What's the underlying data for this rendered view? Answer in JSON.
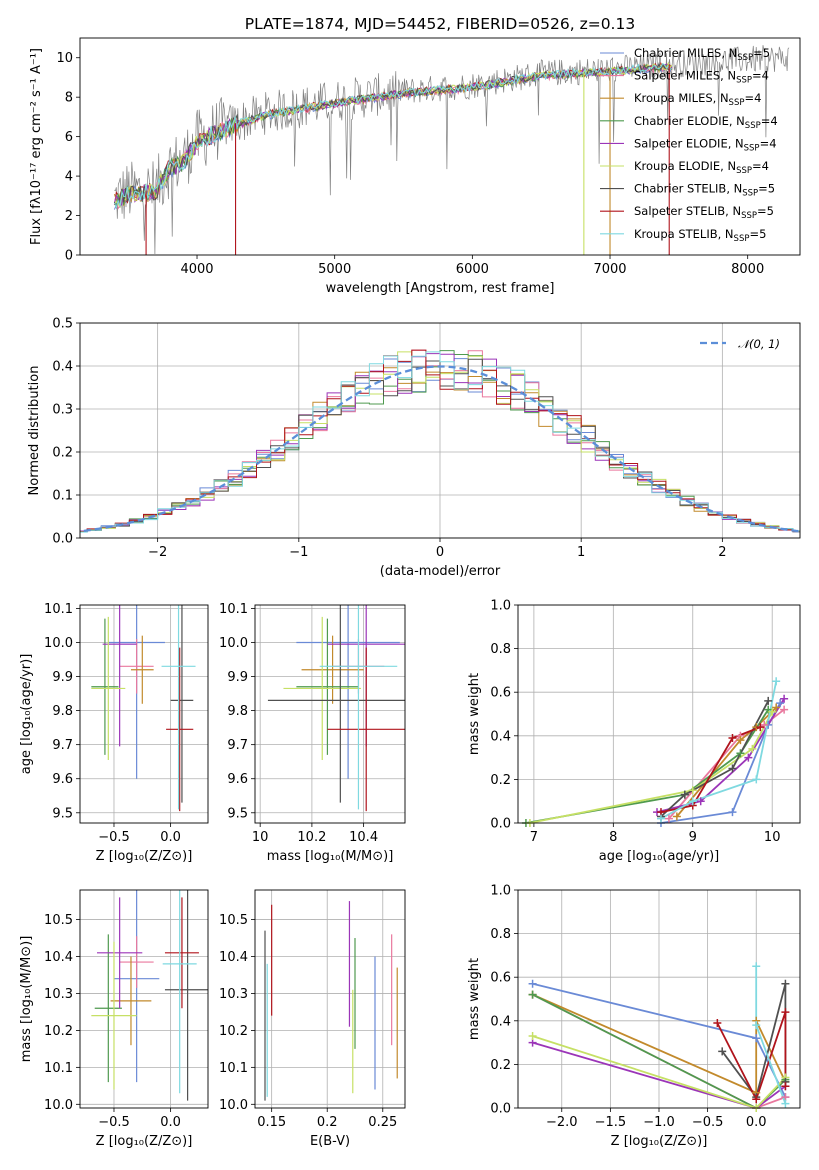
{
  "title": "PLATE=1874, MJD=54452, FIBERID=0526, z=0.13",
  "models": [
    {
      "name": "Chabrier MILES, N",
      "sub": "SSP",
      "suffix": "=5",
      "color": "#6a8ad6"
    },
    {
      "name": "Salpeter MILES, N",
      "sub": "SSP",
      "suffix": "=4",
      "color": "#e9789e"
    },
    {
      "name": "Kroupa MILES, N",
      "sub": "SSP",
      "suffix": "=4",
      "color": "#c28a2c"
    },
    {
      "name": "Chabrier ELODIE, N",
      "sub": "SSP",
      "suffix": "=4",
      "color": "#4f9a4f"
    },
    {
      "name": "Salpeter ELODIE, N",
      "sub": "SSP",
      "suffix": "=4",
      "color": "#9b35b8"
    },
    {
      "name": "Kroupa ELODIE, N",
      "sub": "SSP",
      "suffix": "=4",
      "color": "#c6e065"
    },
    {
      "name": "Chabrier STELIB, N",
      "sub": "SSP",
      "suffix": "=5",
      "color": "#505050"
    },
    {
      "name": "Salpeter STELIB, N",
      "sub": "SSP",
      "suffix": "=5",
      "color": "#b0141c"
    },
    {
      "name": "Kroupa STELIB, N",
      "sub": "SSP",
      "suffix": "=5",
      "color": "#7fd9e0"
    }
  ],
  "chart_data": [
    {
      "type": "line",
      "id": "spectrum",
      "xlabel": "wavelength [Angstrom, rest frame]",
      "ylabel": "Flux [fλ10⁻¹⁷ erg cm⁻² s⁻¹ A⁻¹]",
      "xlim": [
        3150,
        8380
      ],
      "ylim": [
        0,
        11
      ],
      "xticks": [
        4000,
        5000,
        6000,
        7000,
        8000
      ],
      "yticks": [
        0,
        2,
        4,
        6,
        8,
        10
      ],
      "data_color": "#808080",
      "continuum": {
        "x": [
          3400,
          3500,
          3700,
          3800,
          3900,
          4000,
          4200,
          4500,
          5000,
          5500,
          6000,
          6500,
          7000,
          7500,
          8000,
          8300
        ],
        "y": [
          2.8,
          3.2,
          3.3,
          4.5,
          4.8,
          5.8,
          6.5,
          7.2,
          7.8,
          8.3,
          8.6,
          9.2,
          9.4,
          9.7,
          9.9,
          10.0
        ]
      },
      "model_range": [
        3400,
        7450
      ],
      "data_range": [
        3400,
        8300
      ],
      "dropouts": [
        {
          "x": 3630,
          "model": 7
        },
        {
          "x": 4280,
          "model": 7
        },
        {
          "x": 6810,
          "model": 5
        },
        {
          "x": 7430,
          "model": 7
        },
        {
          "x": 7000,
          "model": 2
        }
      ]
    },
    {
      "type": "step",
      "id": "residual-histogram",
      "xlabel": "(data-model)/error",
      "ylabel": "Normed distribution",
      "xlim": [
        -2.55,
        2.55
      ],
      "ylim": [
        0,
        0.5
      ],
      "xticks": [
        -2,
        -1,
        0,
        1,
        2
      ],
      "yticks": [
        0.0,
        0.1,
        0.2,
        0.3,
        0.4,
        0.5
      ],
      "bin_width": 0.1,
      "legend": "𝒩(0, 1)",
      "reference_color": "#5b8ed8"
    },
    {
      "type": "errorbar",
      "id": "age-vs-metallicity",
      "xlabel": "Z [log₁₀(Z/Z⊙)]",
      "ylabel": "age  [log₁₀(age/yr)]",
      "xlim": [
        -0.8,
        0.33
      ],
      "ylim": [
        9.47,
        10.11
      ],
      "xticks": [
        -0.5,
        0.0
      ],
      "yticks": [
        9.5,
        9.6,
        9.7,
        9.8,
        9.9,
        10.0,
        10.1
      ],
      "points": [
        {
          "m": 0,
          "x": -0.3,
          "y": 10.0,
          "xe": 0.25,
          "ye": 0.4
        },
        {
          "m": 1,
          "x": -0.3,
          "y": 9.93,
          "xe": 0.15,
          "ye": 0.08
        },
        {
          "m": 2,
          "x": -0.25,
          "y": 9.92,
          "xe": 0.1,
          "ye": 0.1
        },
        {
          "m": 3,
          "x": -0.58,
          "y": 9.87,
          "xe": 0.12,
          "ye": 0.2
        },
        {
          "m": 4,
          "x": -0.45,
          "y": 9.995,
          "xe": 0.15,
          "ye": 0.3
        },
        {
          "m": 5,
          "x": -0.55,
          "y": 9.865,
          "xe": 0.15,
          "ye": 0.21
        },
        {
          "m": 6,
          "x": 0.1,
          "y": 9.83,
          "xe": 0.1,
          "ye": 0.3
        },
        {
          "m": 7,
          "x": 0.08,
          "y": 9.745,
          "xe": 0.12,
          "ye": 0.24
        },
        {
          "m": 8,
          "x": 0.07,
          "y": 9.93,
          "xe": 0.15,
          "ye": 0.42
        }
      ]
    },
    {
      "type": "errorbar",
      "id": "age-vs-mass",
      "xlabel": "mass [log₁₀(M/M⊙)]",
      "ylabel": "",
      "xlim": [
        9.98,
        10.56
      ],
      "ylim": [
        9.47,
        10.11
      ],
      "xticks": [
        10.0,
        10.2,
        10.4
      ],
      "yticks": [
        9.5,
        9.6,
        9.7,
        9.8,
        9.9,
        10.0,
        10.1
      ],
      "points": [
        {
          "m": 0,
          "x": 10.34,
          "y": 10.0,
          "xe": 0.2,
          "ye": 0.4
        },
        {
          "m": 1,
          "x": 10.38,
          "y": 9.93,
          "xe": 0.1,
          "ye": 0.08
        },
        {
          "m": 2,
          "x": 10.28,
          "y": 9.92,
          "xe": 0.12,
          "ye": 0.1
        },
        {
          "m": 3,
          "x": 10.26,
          "y": 9.87,
          "xe": 0.12,
          "ye": 0.2
        },
        {
          "m": 4,
          "x": 10.41,
          "y": 9.995,
          "xe": 0.15,
          "ye": 0.3
        },
        {
          "m": 5,
          "x": 10.24,
          "y": 9.865,
          "xe": 0.15,
          "ye": 0.21
        },
        {
          "m": 6,
          "x": 10.31,
          "y": 9.83,
          "xe": 0.28,
          "ye": 0.3
        },
        {
          "m": 7,
          "x": 10.41,
          "y": 9.745,
          "xe": 0.15,
          "ye": 0.24
        },
        {
          "m": 8,
          "x": 10.38,
          "y": 9.93,
          "xe": 0.15,
          "ye": 0.42
        }
      ]
    },
    {
      "type": "line",
      "id": "mass-weight-vs-age",
      "xlabel": "age  [log₁₀(age/yr)]",
      "ylabel": "mass weight",
      "xlim": [
        6.8,
        10.35
      ],
      "ylim": [
        0,
        1.0
      ],
      "xticks": [
        7,
        8,
        9,
        10
      ],
      "yticks": [
        0.0,
        0.2,
        0.4,
        0.6,
        0.8,
        1.0
      ],
      "series": [
        {
          "m": 0,
          "x": [
            8.6,
            9.5,
            9.95,
            10.1
          ],
          "y": [
            0.0,
            0.05,
            0.45,
            0.55
          ]
        },
        {
          "m": 1,
          "x": [
            8.7,
            9.6,
            9.9,
            10.15
          ],
          "y": [
            0.02,
            0.4,
            0.45,
            0.52
          ]
        },
        {
          "m": 2,
          "x": [
            8.8,
            9.6,
            9.8,
            10.05
          ],
          "y": [
            0.03,
            0.38,
            0.44,
            0.53
          ]
        },
        {
          "m": 3,
          "x": [
            6.9,
            8.9,
            9.6,
            9.95
          ],
          "y": [
            0.0,
            0.13,
            0.32,
            0.52
          ]
        },
        {
          "m": 4,
          "x": [
            8.55,
            9.1,
            9.7,
            10.15
          ],
          "y": [
            0.05,
            0.1,
            0.3,
            0.57
          ]
        },
        {
          "m": 5,
          "x": [
            6.95,
            9.0,
            9.75,
            10.0
          ],
          "y": [
            0.0,
            0.15,
            0.34,
            0.51
          ]
        },
        {
          "m": 6,
          "x": [
            8.6,
            8.9,
            9.5,
            9.95
          ],
          "y": [
            0.03,
            0.13,
            0.25,
            0.56
          ]
        },
        {
          "m": 7,
          "x": [
            8.6,
            9.0,
            9.5,
            9.85
          ],
          "y": [
            0.05,
            0.08,
            0.39,
            0.44
          ]
        },
        {
          "m": 8,
          "x": [
            8.6,
            9.0,
            9.8,
            10.05
          ],
          "y": [
            0.02,
            0.1,
            0.2,
            0.65
          ]
        }
      ]
    },
    {
      "type": "errorbar",
      "id": "mass-vs-metallicity",
      "xlabel": "Z [log₁₀(Z/Z⊙)]",
      "ylabel": "mass [log₁₀(M/M⊙)]",
      "xlim": [
        -0.8,
        0.33
      ],
      "ylim": [
        9.99,
        10.58
      ],
      "xticks": [
        -0.5,
        0.0
      ],
      "yticks": [
        10.0,
        10.1,
        10.2,
        10.3,
        10.4,
        10.5
      ],
      "points": [
        {
          "m": 0,
          "x": -0.3,
          "y": 10.34,
          "xe": 0.2,
          "ye": 0.28
        },
        {
          "m": 1,
          "x": -0.3,
          "y": 10.385,
          "xe": 0.15,
          "ye": 0.07
        },
        {
          "m": 2,
          "x": -0.35,
          "y": 10.28,
          "xe": 0.18,
          "ye": 0.12
        },
        {
          "m": 3,
          "x": -0.55,
          "y": 10.26,
          "xe": 0.12,
          "ye": 0.2
        },
        {
          "m": 4,
          "x": -0.45,
          "y": 10.41,
          "xe": 0.2,
          "ye": 0.15
        },
        {
          "m": 5,
          "x": -0.5,
          "y": 10.24,
          "xe": 0.2,
          "ye": 0.2
        },
        {
          "m": 6,
          "x": 0.15,
          "y": 10.31,
          "xe": 0.2,
          "ye": 0.3
        },
        {
          "m": 7,
          "x": 0.1,
          "y": 10.41,
          "xe": 0.15,
          "ye": 0.15
        },
        {
          "m": 8,
          "x": 0.08,
          "y": 10.38,
          "xe": 0.15,
          "ye": 0.35
        }
      ]
    },
    {
      "type": "errorbar",
      "id": "mass-vs-ebv",
      "xlabel": "E(B-V)",
      "ylabel": "",
      "xlim": [
        0.135,
        0.27
      ],
      "ylim": [
        9.99,
        10.58
      ],
      "xticks": [
        0.15,
        0.2,
        0.25
      ],
      "yticks": [
        10.0,
        10.1,
        10.2,
        10.3,
        10.4,
        10.5
      ],
      "points": [
        {
          "m": 0,
          "x": 0.243,
          "y": 10.22,
          "ye": 0.18
        },
        {
          "m": 1,
          "x": 0.258,
          "y": 10.31,
          "ye": 0.15
        },
        {
          "m": 2,
          "x": 0.263,
          "y": 10.22,
          "ye": 0.15
        },
        {
          "m": 3,
          "x": 0.225,
          "y": 10.3,
          "ye": 0.15
        },
        {
          "m": 4,
          "x": 0.22,
          "y": 10.38,
          "ye": 0.17
        },
        {
          "m": 5,
          "x": 0.223,
          "y": 10.17,
          "ye": 0.14
        },
        {
          "m": 6,
          "x": 0.144,
          "y": 10.24,
          "ye": 0.23
        },
        {
          "m": 7,
          "x": 0.15,
          "y": 10.39,
          "ye": 0.15
        },
        {
          "m": 8,
          "x": 0.146,
          "y": 10.2,
          "ye": 0.18
        }
      ]
    },
    {
      "type": "line",
      "id": "mass-weight-vs-metallicity",
      "xlabel": "Z [log₁₀(Z/Z⊙)]",
      "ylabel": "mass weight",
      "xlim": [
        -2.45,
        0.45
      ],
      "ylim": [
        0,
        1.0
      ],
      "xticks": [
        -2.0,
        -1.5,
        -1.0,
        -0.5,
        0.0
      ],
      "yticks": [
        0.0,
        0.2,
        0.4,
        0.6,
        0.8,
        1.0
      ],
      "series": [
        {
          "m": 0,
          "x": [
            -2.3,
            0.0,
            0.3
          ],
          "y": [
            0.57,
            0.32,
            0.05
          ]
        },
        {
          "m": 1,
          "x": [
            -2.3,
            0.0,
            0.3
          ],
          "y": [
            0.52,
            0.0,
            0.05
          ]
        },
        {
          "m": 2,
          "x": [
            -2.3,
            0.0,
            0.0,
            0.3
          ],
          "y": [
            0.52,
            0.07,
            0.4,
            0.12
          ]
        },
        {
          "m": 3,
          "x": [
            -2.3,
            0.0,
            0.3
          ],
          "y": [
            0.52,
            0.0,
            0.13
          ]
        },
        {
          "m": 4,
          "x": [
            -2.3,
            0.0,
            0.3
          ],
          "y": [
            0.3,
            0.0,
            0.1
          ]
        },
        {
          "m": 5,
          "x": [
            -2.3,
            0.0,
            0.3
          ],
          "y": [
            0.33,
            0.0,
            0.14
          ]
        },
        {
          "m": 6,
          "x": [
            -0.35,
            0.0,
            0.3,
            0.3
          ],
          "y": [
            0.26,
            0.05,
            0.57,
            0.12
          ]
        },
        {
          "m": 7,
          "x": [
            -0.4,
            0.0,
            0.3,
            0.3
          ],
          "y": [
            0.39,
            0.04,
            0.44,
            0.1
          ]
        },
        {
          "m": 8,
          "x": [
            0.0,
            0.0,
            0.3
          ],
          "y": [
            0.65,
            0.38,
            0.02
          ]
        }
      ]
    }
  ]
}
